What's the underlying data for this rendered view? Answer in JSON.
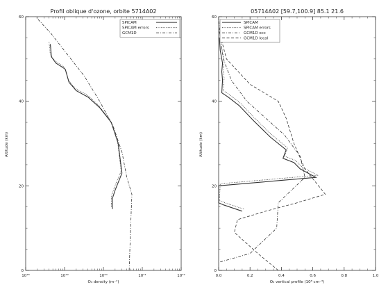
{
  "chart_data": [
    {
      "type": "line",
      "title": "Profil oblique d'ozone, orbite 5714A02",
      "xlabel": "O₃ density (m⁻³)",
      "ylabel": "Altitude (km)",
      "xscale": "log",
      "xlim": [
        1e+18,
        1e+22
      ],
      "ylim": [
        0,
        60
      ],
      "x_ticks": [
        1e+18,
        1e+19,
        1e+20,
        1e+21,
        1e+22
      ],
      "x_tick_labels": [
        "10¹⁸",
        "10¹⁹",
        "10²⁰",
        "10²¹",
        "10²²"
      ],
      "y_ticks": [
        0,
        20,
        40,
        60
      ],
      "y_tick_labels": [
        "0",
        "20",
        "40",
        "60"
      ],
      "grid": false,
      "legend_position": "top-right",
      "series": [
        {
          "name": "SPICAM",
          "style": "solid",
          "x": [
            1.7e+20,
            1.7e+20,
            2e+20,
            3e+20,
            2.4e+20,
            1.6e+20,
            8e+19,
            4e+19,
            2e+19,
            1.3e+19,
            1.05e+19,
            9e+18,
            6e+18,
            4.6e+18,
            4.3e+18
          ],
          "y": [
            14.5,
            17,
            19,
            23,
            30,
            35,
            38.5,
            41,
            42.5,
            44.5,
            47.5,
            48,
            49,
            50.5,
            53.5
          ]
        },
        {
          "name": "SPICAM errors",
          "style": "dotted",
          "x": [
            1.6e+20,
            1.6e+20,
            1.9e+20,
            2.85e+20,
            2.3e+20,
            1.5e+20,
            7.6e+19,
            3.8e+19,
            1.9e+19,
            1.25e+19,
            1e+19,
            8.6e+18,
            5.7e+18,
            4.3e+18,
            4e+18
          ],
          "y": [
            15,
            17.5,
            19.5,
            23.5,
            30.5,
            35.5,
            39,
            41.5,
            43,
            45,
            48,
            48.5,
            49.5,
            51,
            54
          ]
        },
        {
          "name": "GCM1D",
          "style": "dash-dot",
          "x": [
            4.6e+20,
            4.8e+20,
            5e+20,
            5.4e+20,
            4e+20,
            3e+20,
            1.8e+20,
            8e+19,
            3.2e+19,
            1.2e+19,
            4.5e+18,
            1.8e+18
          ],
          "y": [
            0,
            5,
            10,
            18,
            22,
            28,
            34,
            40,
            46,
            51,
            56,
            60
          ]
        }
      ]
    },
    {
      "type": "line",
      "title": "05714A02 [59.7,100.9] 85.1 21.6",
      "xlabel": "O₃ vertical profile (10⁸ cm⁻³)",
      "ylabel": "Altitude (km)",
      "xlim": [
        0,
        1.0
      ],
      "ylim": [
        0,
        60
      ],
      "x_ticks": [
        0,
        0.2,
        0.4,
        0.6,
        0.8,
        1.0
      ],
      "x_tick_labels": [
        "0.0",
        "0.2",
        "0.4",
        "0.6",
        "0.8",
        "1.0"
      ],
      "y_ticks": [
        0,
        20,
        40,
        60
      ],
      "y_tick_labels": [
        "0",
        "20",
        "40",
        "60"
      ],
      "grid": false,
      "legend_position": "top-left",
      "series": [
        {
          "name": "SPICAM",
          "style": "solid",
          "x": [
            0.15,
            0.03,
            0,
            0,
            0.62,
            0.52,
            0.48,
            0.41,
            0.43,
            0.33,
            0.22,
            0.13,
            0.06,
            0.02,
            0.025,
            0.02,
            0.025,
            0.01,
            0.005
          ],
          "y": [
            14,
            15.5,
            16,
            20,
            22,
            24,
            25.5,
            26.5,
            28.5,
            31.5,
            35.5,
            39,
            41,
            42,
            45,
            47,
            49,
            52,
            55
          ]
        },
        {
          "name": "SPICAM errors",
          "style": "dotted",
          "x": [
            0.16,
            0.04,
            0.005,
            0.01,
            0.63,
            0.53,
            0.49,
            0.42,
            0.44,
            0.34,
            0.23,
            0.14,
            0.07,
            0.03,
            0.035,
            0.03,
            0.035,
            0.02,
            0.01
          ],
          "y": [
            14.5,
            16,
            16.5,
            20.5,
            22.5,
            24.5,
            26,
            27,
            29,
            32,
            36,
            39.5,
            41.5,
            42.5,
            45.5,
            47.5,
            49.5,
            52.5,
            55.5
          ]
        },
        {
          "name": "GCM1D occ",
          "style": "dash-dot",
          "x": [
            0.01,
            0.2,
            0.37,
            0.38,
            0.55,
            0.52,
            0.42,
            0.3,
            0.18,
            0.08,
            0.03,
            0.01,
            0.0
          ],
          "y": [
            2,
            4,
            10,
            16,
            22,
            27,
            32,
            36,
            40,
            45,
            50,
            55,
            60
          ]
        },
        {
          "name": "GCM1D local",
          "style": "dashed",
          "x": [
            0.38,
            0.25,
            0.1,
            0.12,
            0.3,
            0.5,
            0.68,
            0.55,
            0.48,
            0.43,
            0.38,
            0.2,
            0.05,
            0.0
          ],
          "y": [
            0,
            4,
            9,
            12,
            14,
            16,
            18,
            24,
            30,
            36,
            40,
            44,
            50,
            57
          ]
        }
      ]
    }
  ]
}
